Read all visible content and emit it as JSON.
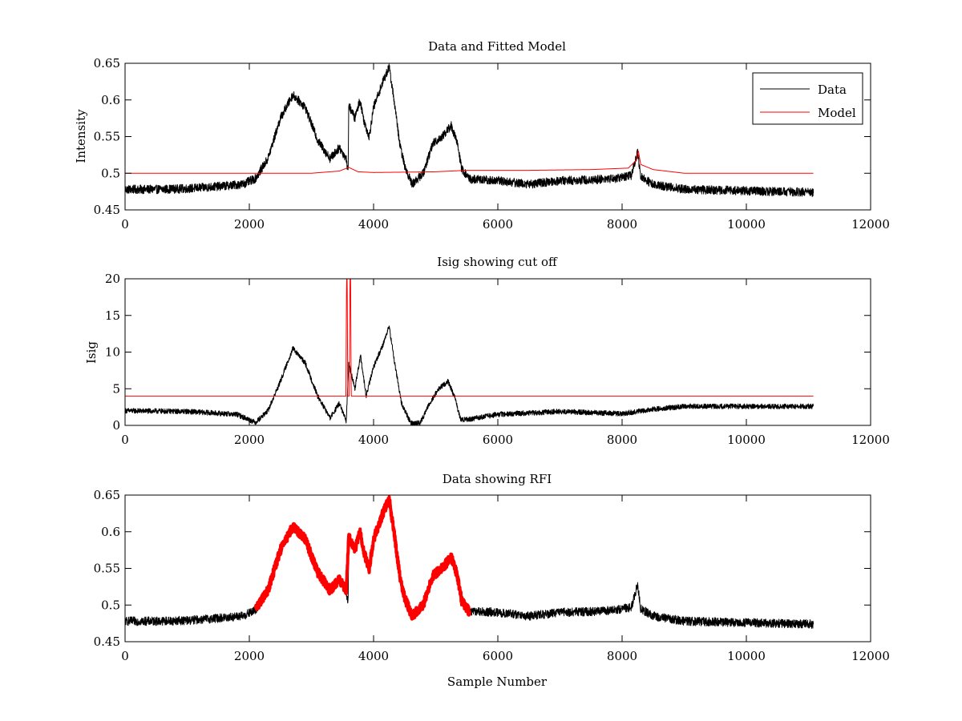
{
  "chart_data": [
    {
      "type": "line",
      "title": "Data and Fitted Model",
      "xlabel": "",
      "ylabel": "Intensity",
      "xlim": [
        0,
        12000
      ],
      "ylim": [
        0.45,
        0.65
      ],
      "xticks": [
        0,
        2000,
        4000,
        6000,
        8000,
        10000,
        12000
      ],
      "yticks": [
        0.45,
        0.5,
        0.55,
        0.6,
        0.65
      ],
      "xtick_labels": [
        "0",
        "2000",
        "4000",
        "6000",
        "8000",
        "10000",
        "12000"
      ],
      "ytick_labels": [
        "0.45",
        "0.5",
        "0.55",
        "0.6",
        "0.65"
      ],
      "legend": {
        "placement": "top-right",
        "entries": [
          {
            "name": "Data",
            "color": "#000000"
          },
          {
            "name": "Model",
            "color": "#ff0000"
          }
        ]
      },
      "series": [
        {
          "name": "Data",
          "color": "#000000",
          "noise": 0.006,
          "points": [
            [
              0,
              0.478
            ],
            [
              500,
              0.478
            ],
            [
              1000,
              0.479
            ],
            [
              1500,
              0.482
            ],
            [
              1900,
              0.485
            ],
            [
              2100,
              0.493
            ],
            [
              2300,
              0.52
            ],
            [
              2500,
              0.575
            ],
            [
              2700,
              0.607
            ],
            [
              2900,
              0.59
            ],
            [
              3100,
              0.545
            ],
            [
              3300,
              0.52
            ],
            [
              3450,
              0.535
            ],
            [
              3560,
              0.52
            ],
            [
              3590,
              0.5
            ],
            [
              3600,
              0.593
            ],
            [
              3700,
              0.575
            ],
            [
              3780,
              0.6
            ],
            [
              3850,
              0.57
            ],
            [
              3930,
              0.55
            ],
            [
              4000,
              0.59
            ],
            [
              4150,
              0.625
            ],
            [
              4250,
              0.645
            ],
            [
              4330,
              0.6
            ],
            [
              4420,
              0.54
            ],
            [
              4500,
              0.51
            ],
            [
              4620,
              0.485
            ],
            [
              4800,
              0.5
            ],
            [
              4950,
              0.54
            ],
            [
              5100,
              0.55
            ],
            [
              5250,
              0.565
            ],
            [
              5350,
              0.54
            ],
            [
              5420,
              0.505
            ],
            [
              5550,
              0.492
            ],
            [
              6000,
              0.49
            ],
            [
              6500,
              0.485
            ],
            [
              7000,
              0.49
            ],
            [
              7500,
              0.491
            ],
            [
              7900,
              0.493
            ],
            [
              8150,
              0.497
            ],
            [
              8250,
              0.528
            ],
            [
              8300,
              0.495
            ],
            [
              8500,
              0.485
            ],
            [
              9000,
              0.478
            ],
            [
              10000,
              0.476
            ],
            [
              11080,
              0.474
            ]
          ]
        },
        {
          "name": "Model",
          "color": "#ff0000",
          "noise": 0,
          "points": [
            [
              0,
              0.5
            ],
            [
              2000,
              0.5
            ],
            [
              3000,
              0.5
            ],
            [
              3450,
              0.503
            ],
            [
              3600,
              0.508
            ],
            [
              3750,
              0.502
            ],
            [
              4000,
              0.501
            ],
            [
              5000,
              0.502
            ],
            [
              5500,
              0.504
            ],
            [
              6500,
              0.504
            ],
            [
              7500,
              0.505
            ],
            [
              8100,
              0.507
            ],
            [
              8230,
              0.518
            ],
            [
              8260,
              0.531
            ],
            [
              8300,
              0.512
            ],
            [
              8500,
              0.505
            ],
            [
              9000,
              0.5
            ],
            [
              11080,
              0.5
            ]
          ]
        }
      ]
    },
    {
      "type": "line",
      "title": "Isig showing cut off",
      "xlabel": "",
      "ylabel": "Isig",
      "xlim": [
        0,
        12000
      ],
      "ylim": [
        0,
        20
      ],
      "xticks": [
        0,
        2000,
        4000,
        6000,
        8000,
        10000,
        12000
      ],
      "yticks": [
        0,
        5,
        10,
        15,
        20
      ],
      "xtick_labels": [
        "0",
        "2000",
        "4000",
        "6000",
        "8000",
        "10000",
        "12000"
      ],
      "ytick_labels": [
        "0",
        "5",
        "10",
        "15",
        "20"
      ],
      "series": [
        {
          "color": "#000000",
          "noise": 0.35,
          "points": [
            [
              0,
              2
            ],
            [
              1000,
              1.9
            ],
            [
              1800,
              1.5
            ],
            [
              2100,
              0.4
            ],
            [
              2300,
              2
            ],
            [
              2500,
              6
            ],
            [
              2700,
              10.5
            ],
            [
              2900,
              8.5
            ],
            [
              3100,
              4
            ],
            [
              3300,
              1
            ],
            [
              3450,
              3
            ],
            [
              3560,
              0.5
            ],
            [
              3600,
              8.5
            ],
            [
              3700,
              5
            ],
            [
              3790,
              9.5
            ],
            [
              3880,
              4
            ],
            [
              4000,
              8
            ],
            [
              4150,
              11
            ],
            [
              4250,
              13.5
            ],
            [
              4350,
              8
            ],
            [
              4450,
              3
            ],
            [
              4600,
              0.3
            ],
            [
              4750,
              0.3
            ],
            [
              4900,
              3
            ],
            [
              5050,
              5
            ],
            [
              5200,
              6
            ],
            [
              5300,
              4
            ],
            [
              5400,
              0.8
            ],
            [
              5500,
              0.8
            ],
            [
              6000,
              1.5
            ],
            [
              7000,
              1.9
            ],
            [
              8000,
              1.6
            ],
            [
              8500,
              2.2
            ],
            [
              9000,
              2.6
            ],
            [
              11080,
              2.6
            ]
          ]
        },
        {
          "color": "#ff0000",
          "noise": 0,
          "points": [
            [
              0,
              4
            ],
            [
              3555,
              4
            ],
            [
              3565,
              20
            ],
            [
              3575,
              20
            ],
            [
              3585,
              4
            ],
            [
              3610,
              4
            ],
            [
              3620,
              20
            ],
            [
              3630,
              20
            ],
            [
              3640,
              4
            ],
            [
              11080,
              4
            ]
          ]
        }
      ]
    },
    {
      "type": "line",
      "title": "Data showing RFI",
      "xlabel": "Sample Number",
      "ylabel": "",
      "xlim": [
        0,
        12000
      ],
      "ylim": [
        0.45,
        0.65
      ],
      "xticks": [
        0,
        2000,
        4000,
        6000,
        8000,
        10000,
        12000
      ],
      "yticks": [
        0.45,
        0.5,
        0.55,
        0.6,
        0.65
      ],
      "xtick_labels": [
        "0",
        "2000",
        "4000",
        "6000",
        "8000",
        "10000",
        "12000"
      ],
      "ytick_labels": [
        "0.45",
        "0.5",
        "0.55",
        "0.6",
        "0.65"
      ],
      "series": [
        {
          "color": "#000000",
          "noise": 0.006,
          "points": [
            [
              0,
              0.478
            ],
            [
              500,
              0.478
            ],
            [
              1000,
              0.479
            ],
            [
              1500,
              0.482
            ],
            [
              1900,
              0.485
            ],
            [
              2100,
              0.493
            ],
            [
              2300,
              0.52
            ],
            [
              2500,
              0.575
            ],
            [
              2700,
              0.607
            ],
            [
              2900,
              0.59
            ],
            [
              3100,
              0.545
            ],
            [
              3300,
              0.52
            ],
            [
              3450,
              0.535
            ],
            [
              3560,
              0.52
            ],
            [
              3590,
              0.5
            ],
            [
              3600,
              0.593
            ],
            [
              3700,
              0.575
            ],
            [
              3780,
              0.6
            ],
            [
              3850,
              0.57
            ],
            [
              3930,
              0.55
            ],
            [
              4000,
              0.59
            ],
            [
              4150,
              0.625
            ],
            [
              4250,
              0.645
            ],
            [
              4330,
              0.6
            ],
            [
              4420,
              0.54
            ],
            [
              4500,
              0.51
            ],
            [
              4620,
              0.485
            ],
            [
              4800,
              0.5
            ],
            [
              4950,
              0.54
            ],
            [
              5100,
              0.55
            ],
            [
              5250,
              0.565
            ],
            [
              5350,
              0.54
            ],
            [
              5420,
              0.505
            ],
            [
              5550,
              0.492
            ],
            [
              6000,
              0.49
            ],
            [
              6500,
              0.485
            ],
            [
              7000,
              0.49
            ],
            [
              7500,
              0.491
            ],
            [
              7900,
              0.493
            ],
            [
              8150,
              0.497
            ],
            [
              8250,
              0.528
            ],
            [
              8300,
              0.495
            ],
            [
              8500,
              0.485
            ],
            [
              9000,
              0.478
            ],
            [
              10000,
              0.476
            ],
            [
              11080,
              0.474
            ]
          ]
        },
        {
          "color": "#ff0000",
          "noise": 0.006,
          "marker": "dot",
          "points": [
            [
              2100,
              0.495
            ],
            [
              2300,
              0.52
            ],
            [
              2500,
              0.575
            ],
            [
              2700,
              0.607
            ],
            [
              2900,
              0.59
            ],
            [
              3100,
              0.545
            ],
            [
              3300,
              0.52
            ],
            [
              3450,
              0.535
            ],
            [
              3560,
              0.52
            ],
            [
              3600,
              0.593
            ],
            [
              3700,
              0.575
            ],
            [
              3780,
              0.6
            ],
            [
              3850,
              0.57
            ],
            [
              3930,
              0.55
            ],
            [
              4000,
              0.59
            ],
            [
              4150,
              0.625
            ],
            [
              4250,
              0.645
            ],
            [
              4330,
              0.6
            ],
            [
              4420,
              0.54
            ],
            [
              4500,
              0.51
            ],
            [
              4620,
              0.485
            ],
            [
              4800,
              0.5
            ],
            [
              4950,
              0.54
            ],
            [
              5100,
              0.55
            ],
            [
              5250,
              0.565
            ],
            [
              5350,
              0.54
            ],
            [
              5420,
              0.505
            ],
            [
              5550,
              0.49
            ]
          ]
        }
      ]
    }
  ]
}
